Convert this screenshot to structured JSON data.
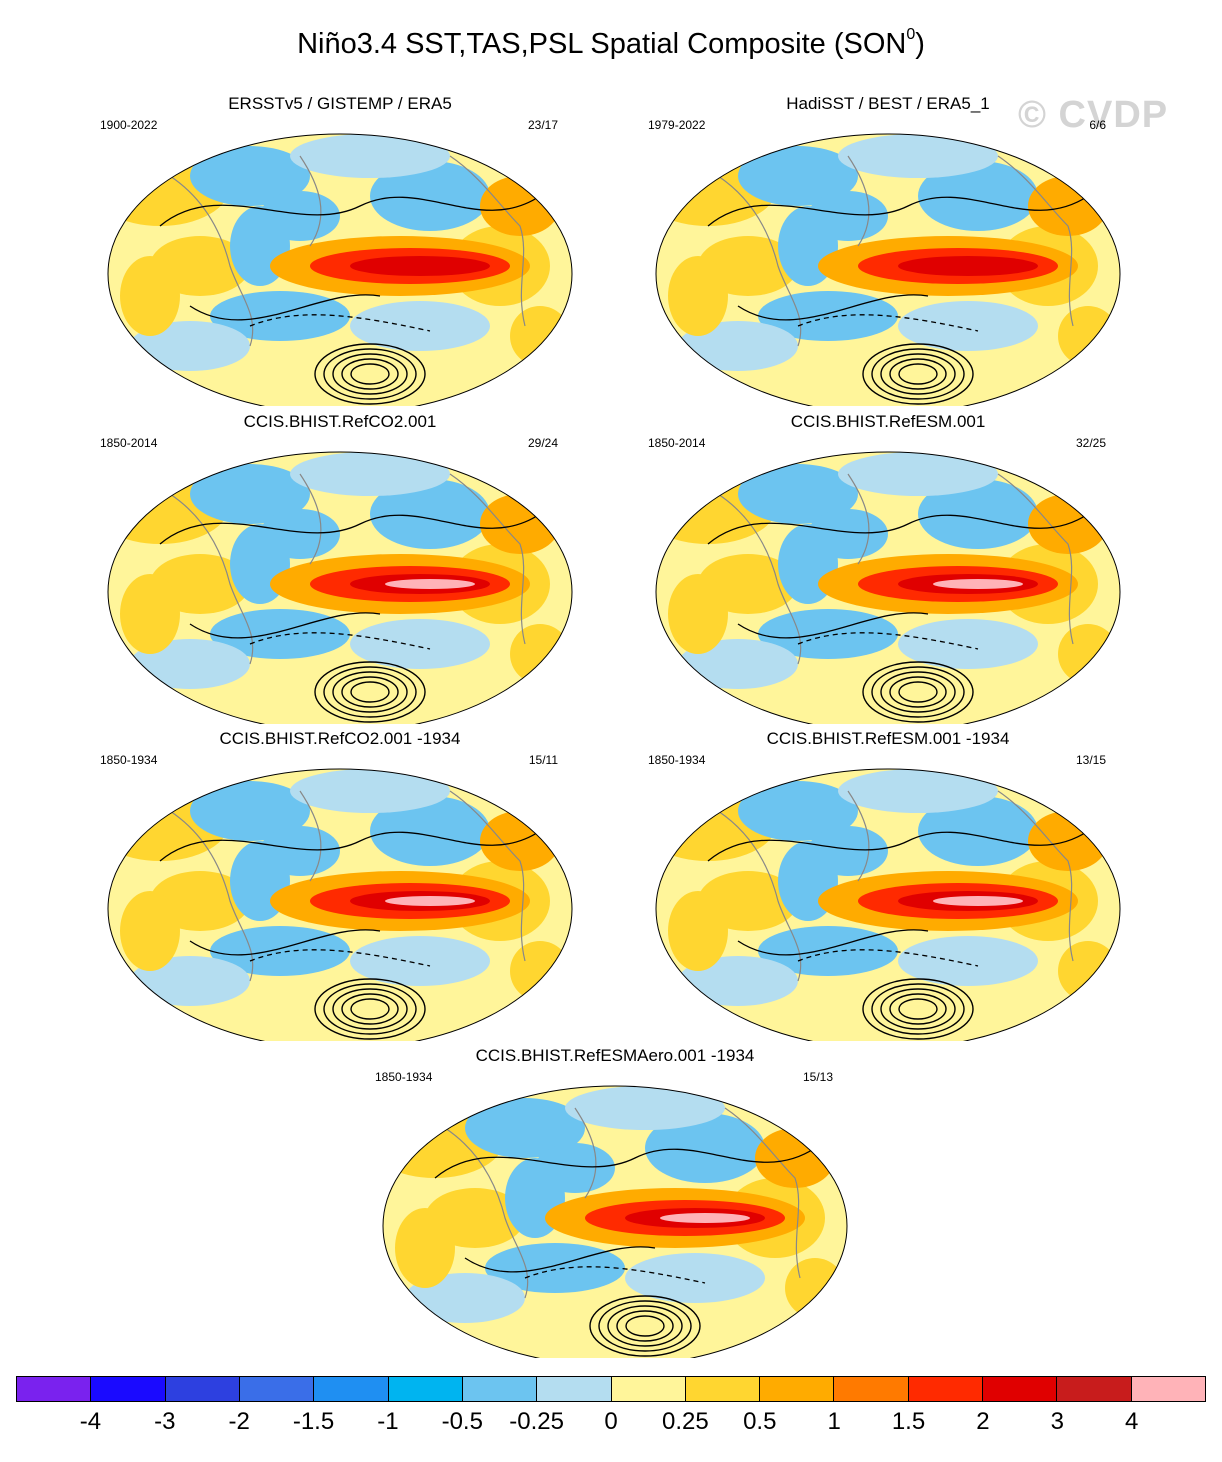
{
  "figure": {
    "title_main": "Niño3.4 SST,TAS,PSL Spatial Composite (SON",
    "title_sup": "0",
    "title_end": ")",
    "watermark": "© CVDP"
  },
  "panels": [
    {
      "title": "ERSSTv5 / GISTEMP / ERA5",
      "period": "1900-2022",
      "count": "23/17"
    },
    {
      "title": "HadiSST / BEST / ERA5_1",
      "period": "1979-2022",
      "count": "6/6"
    },
    {
      "title": "CCIS.BHIST.RefCO2.001",
      "period": "1850-2014",
      "count": "29/24"
    },
    {
      "title": "CCIS.BHIST.RefESM.001",
      "period": "1850-2014",
      "count": "32/25"
    },
    {
      "title": "CCIS.BHIST.RefCO2.001 -1934",
      "period": "1850-1934",
      "count": "15/11"
    },
    {
      "title": "CCIS.BHIST.RefESM.001 -1934",
      "period": "1850-1934",
      "count": "13/15"
    },
    {
      "title": "CCIS.BHIST.RefESMAero.001 -1934",
      "period": "1850-1934",
      "count": "15/13"
    }
  ],
  "colorbar": {
    "colors": [
      "#7a22ee",
      "#1a0aff",
      "#2d40e0",
      "#3a6ee8",
      "#1f8ff2",
      "#00b4f0",
      "#6cc4f0",
      "#b4ddf0",
      "#fff59a",
      "#ffd630",
      "#ffab00",
      "#ff7a00",
      "#ff2a00",
      "#e00000",
      "#c81c1c",
      "#ffb3b8"
    ],
    "labels": [
      "-4",
      "-3",
      "-2",
      "-1.5",
      "-1",
      "-0.5",
      "-0.25",
      "0",
      "0.25",
      "0.5",
      "1",
      "1.5",
      "2",
      "3",
      "4"
    ]
  }
}
